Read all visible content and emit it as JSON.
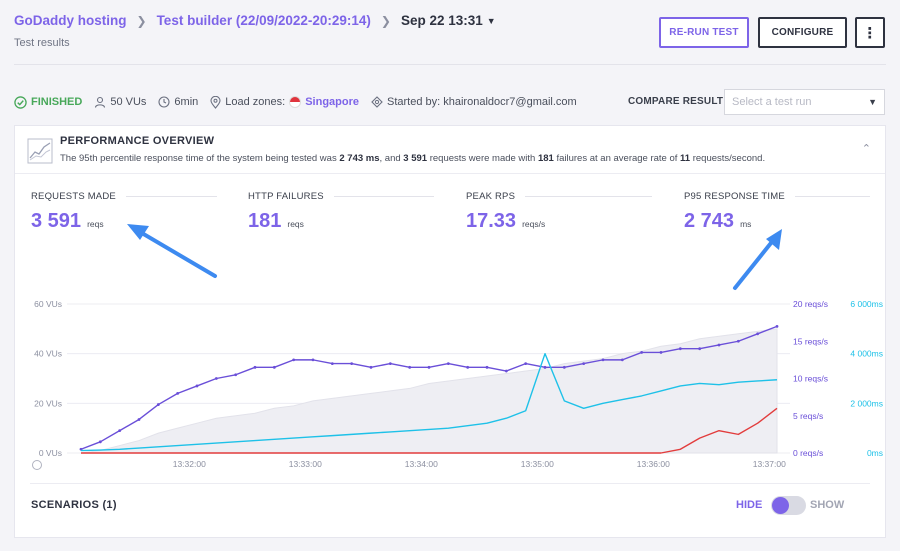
{
  "header": {
    "breadcrumb_org": "GoDaddy hosting",
    "breadcrumb_test": "Test builder (22/09/2022-20:29:14)",
    "breadcrumb_run": "Sep 22 13:31",
    "subtitle": "Test results",
    "rerun_label": "RE-RUN TEST",
    "configure_label": "CONFIGURE",
    "more_label": "⋮"
  },
  "status": {
    "state": "FINISHED",
    "vus": "50 VUs",
    "duration": "6min",
    "load_zones_label": "Load zones:",
    "load_zone": "Singapore",
    "started_by": "Started by: khaironaldocr7@gmail.com",
    "compare_label": "COMPARE RESULT",
    "compare_placeholder": "Select a test run"
  },
  "overview": {
    "title": "PERFORMANCE OVERVIEW",
    "desc_1": "The 95th percentile response time of the system being tested was ",
    "p95": "2 743 ms",
    "desc_2": ", and ",
    "requests": "3 591",
    "desc_3": " requests were made with ",
    "failures": "181",
    "desc_4": " failures at an average rate of ",
    "rate": "11",
    "desc_5": " requests/second."
  },
  "metrics": [
    {
      "label": "REQUESTS MADE",
      "value": "3 591",
      "unit": "reqs"
    },
    {
      "label": "HTTP FAILURES",
      "value": "181",
      "unit": "reqs"
    },
    {
      "label": "PEAK RPS",
      "value": "17.33",
      "unit": "reqs/s"
    },
    {
      "label": "P95 RESPONSE TIME",
      "value": "2 743",
      "unit": "ms"
    }
  ],
  "colors": {
    "vus": "#8b8fa0",
    "requests": "#6a4fd8",
    "response_time": "#1ec1e8",
    "failures": "#e23c3c",
    "accent": "#7d64e8",
    "annotation_arrow": "#3d8af0"
  },
  "chart_data": {
    "type": "line",
    "x_ticks": [
      "13:32:00",
      "13:33:00",
      "13:34:00",
      "13:35:00",
      "13:36:00",
      "13:37:00"
    ],
    "x_range": [
      "13:31:04",
      "13:37:04"
    ],
    "y_left_ticks": [
      "0 VUs",
      "20 VUs",
      "40 VUs",
      "60 VUs"
    ],
    "y_left_range": [
      0,
      60
    ],
    "y_right1_ticks": [
      "0 reqs/s",
      "5 reqs/s",
      "10 reqs/s",
      "15 reqs/s",
      "20 reqs/s"
    ],
    "y_right1_range": [
      0,
      20
    ],
    "y_right2_ticks": [
      "0ms",
      "2 000ms",
      "4 000ms",
      "6 000ms"
    ],
    "y_right2_range": [
      0,
      6000
    ],
    "x": [
      "13:31:04",
      "13:31:14",
      "13:31:24",
      "13:31:34",
      "13:31:44",
      "13:31:54",
      "13:32:04",
      "13:32:14",
      "13:32:24",
      "13:32:34",
      "13:32:44",
      "13:32:54",
      "13:33:04",
      "13:33:14",
      "13:33:24",
      "13:33:34",
      "13:33:44",
      "13:33:54",
      "13:34:04",
      "13:34:14",
      "13:34:24",
      "13:34:34",
      "13:34:44",
      "13:34:54",
      "13:35:04",
      "13:35:14",
      "13:35:24",
      "13:35:34",
      "13:35:44",
      "13:35:54",
      "13:36:04",
      "13:36:14",
      "13:36:24",
      "13:36:34",
      "13:36:44",
      "13:36:54",
      "13:37:04"
    ],
    "series": [
      {
        "axis": "left",
        "values": [
          0,
          1,
          3,
          5,
          8,
          10,
          12,
          14,
          15,
          16,
          18,
          19,
          21,
          22,
          23,
          24,
          25,
          26,
          28,
          29,
          30,
          31,
          32,
          33,
          34,
          36,
          37,
          38,
          40,
          41,
          43,
          44,
          46,
          47,
          48,
          49,
          50
        ]
      },
      {
        "axis": "right1",
        "values": [
          0.5,
          1.5,
          3.0,
          4.5,
          6.5,
          8.0,
          9.0,
          10.0,
          10.5,
          11.5,
          11.5,
          12.5,
          12.5,
          12.0,
          12.0,
          11.5,
          12.0,
          11.5,
          11.5,
          12.0,
          11.5,
          11.5,
          11.0,
          12.0,
          11.5,
          11.5,
          12.0,
          12.5,
          12.5,
          13.5,
          13.5,
          14.0,
          14.0,
          14.5,
          15.0,
          16.0,
          17.0
        ]
      },
      {
        "axis": "right2",
        "values": [
          100,
          120,
          150,
          200,
          250,
          300,
          350,
          400,
          450,
          500,
          550,
          600,
          650,
          700,
          750,
          800,
          850,
          900,
          950,
          1000,
          1100,
          1200,
          1400,
          1700,
          4000,
          2100,
          1800,
          2000,
          2150,
          2300,
          2500,
          2700,
          2800,
          2750,
          2850,
          2900,
          2950
        ]
      },
      {
        "axis": "right1",
        "values": [
          0,
          0,
          0,
          0,
          0,
          0,
          0,
          0,
          0,
          0,
          0,
          0,
          0,
          0,
          0,
          0,
          0,
          0,
          0,
          0,
          0,
          0,
          0,
          0,
          0,
          0,
          0,
          0,
          0,
          0,
          0,
          0.5,
          2.0,
          3.0,
          2.5,
          4.0,
          6.0
        ]
      }
    ]
  }
}
